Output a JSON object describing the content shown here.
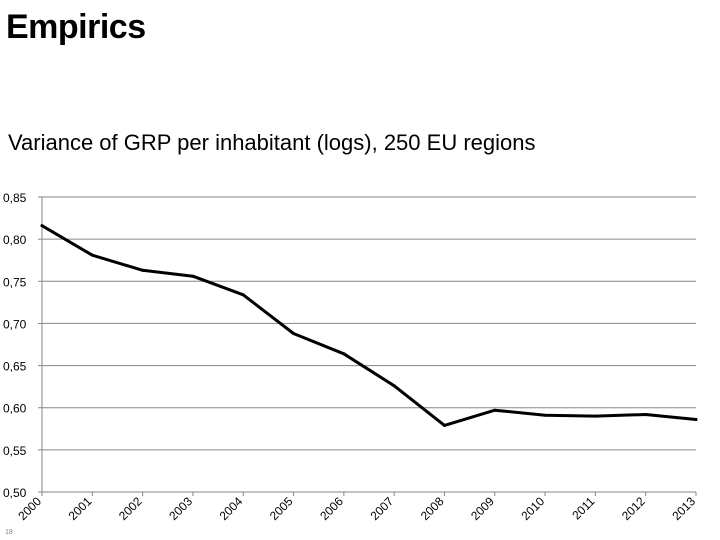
{
  "slide": {
    "title": "Empirics",
    "page_number": "18"
  },
  "chart_data": {
    "type": "line",
    "title": "Variance of GRP per inhabitant (logs), 250 EU regions",
    "xlabel": "",
    "ylabel": "",
    "categories": [
      "2000",
      "2001",
      "2002",
      "2003",
      "2004",
      "2005",
      "2006",
      "2007",
      "2008",
      "2009",
      "2010",
      "2011",
      "2012",
      "2013"
    ],
    "series": [
      {
        "values": [
          0.816,
          0.781,
          0.763,
          0.756,
          0.734,
          0.688,
          0.664,
          0.626,
          0.579,
          0.597,
          0.591,
          0.59,
          0.592,
          0.586
        ]
      }
    ],
    "ylim": [
      0.5,
      0.85
    ],
    "yticks": [
      "0,50",
      "0,55",
      "0,60",
      "0,65",
      "0,70",
      "0,75",
      "0,80",
      "0,85"
    ],
    "grid": true,
    "legend": "none",
    "colors": {
      "line": "#000000",
      "gridline": "#868686",
      "axis": "#868686"
    }
  }
}
